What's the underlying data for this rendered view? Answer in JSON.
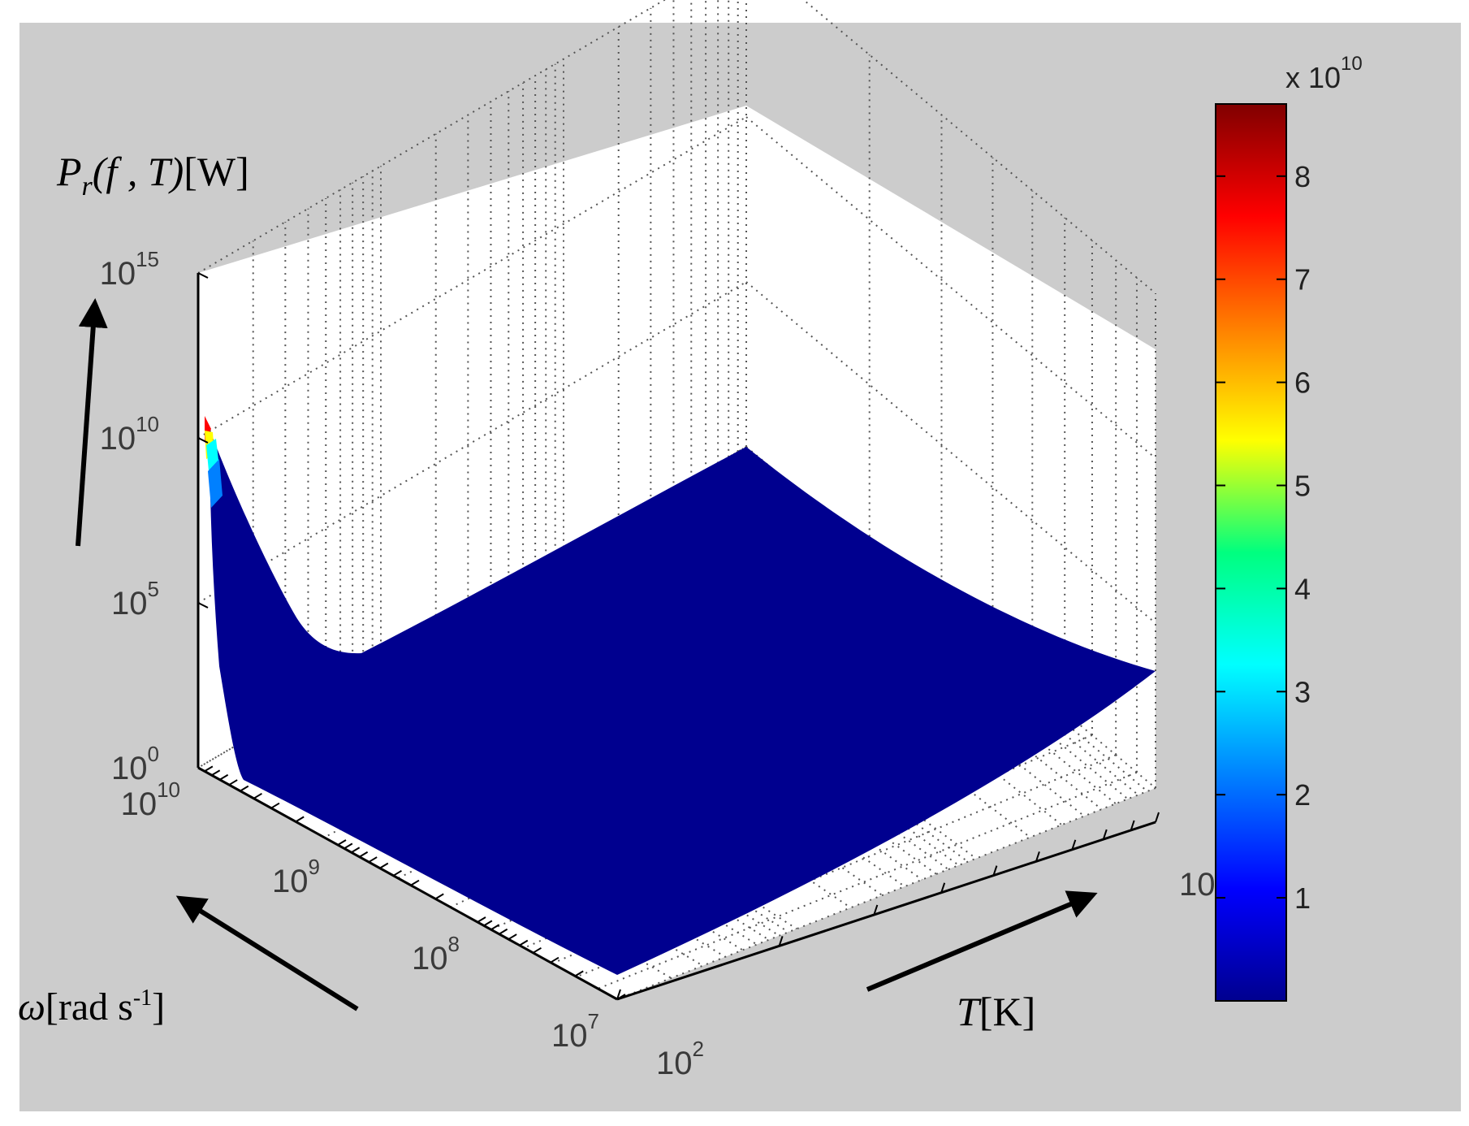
{
  "chart_data": {
    "type": "surface",
    "title": "",
    "zlabel": {
      "main": "P",
      "sub": "r",
      "args": "(f , T)",
      "unit": "[W]"
    },
    "xlabel": {
      "symbol": "ω",
      "unit": "[rad s",
      "sup": "-1",
      "close": "]"
    },
    "ylabel": {
      "symbol": "T",
      "unit": "[K]"
    },
    "z_scale": "log",
    "z_ticks": [
      {
        "base": "10",
        "exp": "0"
      },
      {
        "base": "10",
        "exp": "5"
      },
      {
        "base": "10",
        "exp": "10"
      },
      {
        "base": "10",
        "exp": "15"
      }
    ],
    "zlim": [
      1,
      1000000000000000.0
    ],
    "x_scale": "log",
    "x_ticks": [
      {
        "base": "10",
        "exp": "7"
      },
      {
        "base": "10",
        "exp": "8"
      },
      {
        "base": "10",
        "exp": "9"
      },
      {
        "base": "10",
        "exp": "10"
      }
    ],
    "xlim": [
      10000000.0,
      10000000000.0
    ],
    "y_scale": "log",
    "y_ticks": [
      {
        "base": "10",
        "exp": "2"
      },
      {
        "base": "10",
        "exp": ""
      }
    ],
    "grid": true,
    "surface_color": "#00008f",
    "colorbar": {
      "multiplier": "x 10",
      "multiplier_exp": "10",
      "ticks": [
        "1",
        "2",
        "3",
        "4",
        "5",
        "6",
        "7",
        "8"
      ],
      "range": [
        0,
        8.7
      ],
      "colormap": "jet"
    },
    "approx_values": {
      "peak": {
        "omega": 10000000000.0,
        "T": 100,
        "P": 87000000000.0
      },
      "valley_P": 300,
      "far_corner_P": 50000000.0,
      "near_corner_P": 1,
      "right_corner_P": 3000
    }
  }
}
